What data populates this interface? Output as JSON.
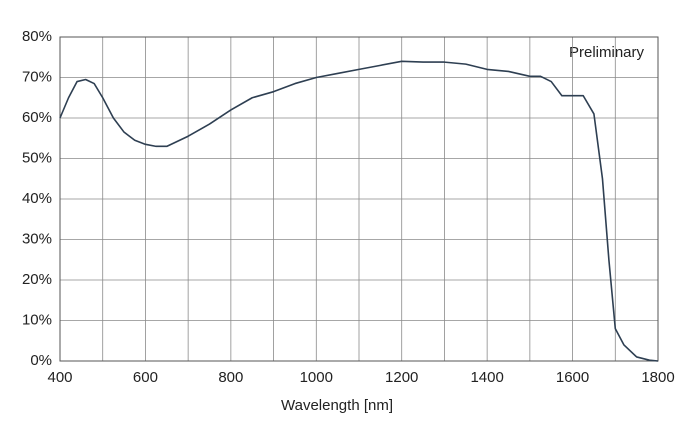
{
  "chart_data": {
    "type": "line",
    "annotation": "Preliminary",
    "x_label": "Wavelength [nm]",
    "x": [
      400,
      420,
      440,
      460,
      480,
      500,
      525,
      550,
      575,
      600,
      625,
      650,
      700,
      750,
      800,
      850,
      900,
      950,
      1000,
      1050,
      1100,
      1150,
      1200,
      1250,
      1300,
      1350,
      1400,
      1450,
      1500,
      1525,
      1550,
      1575,
      1600,
      1625,
      1650,
      1670,
      1685,
      1700,
      1720,
      1750,
      1780,
      1800
    ],
    "series": [
      {
        "color": "#2e3f52",
        "values": [
          60,
          65,
          69,
          69.5,
          68.5,
          65,
          60,
          56.5,
          54.5,
          53.5,
          53,
          53,
          55.5,
          58.5,
          62,
          65,
          66.5,
          68.5,
          70,
          71,
          72,
          73,
          74,
          73.8,
          73.8,
          73.3,
          72,
          71.5,
          70.3,
          70.3,
          69,
          65.5,
          65.5,
          65.5,
          61,
          45,
          25,
          8,
          4,
          1,
          0.2,
          0
        ]
      }
    ],
    "xlim": [
      400,
      1800
    ],
    "xticks": [
      400,
      600,
      800,
      1000,
      1200,
      1400,
      1600,
      1800
    ],
    "xminor_grid": [
      500,
      700,
      900,
      1100,
      1300,
      1500,
      1700
    ],
    "ylim": [
      0,
      80
    ],
    "yticks": [
      {
        "value": 0,
        "label": "0%"
      },
      {
        "value": 10,
        "label": "10%"
      },
      {
        "value": 20,
        "label": "20%"
      },
      {
        "value": 30,
        "label": "30%"
      },
      {
        "value": 40,
        "label": "40%"
      },
      {
        "value": 50,
        "label": "50%"
      },
      {
        "value": 60,
        "label": "60%"
      },
      {
        "value": 70,
        "label": "70%"
      },
      {
        "value": 80,
        "label": "80%"
      }
    ],
    "grid": true
  }
}
